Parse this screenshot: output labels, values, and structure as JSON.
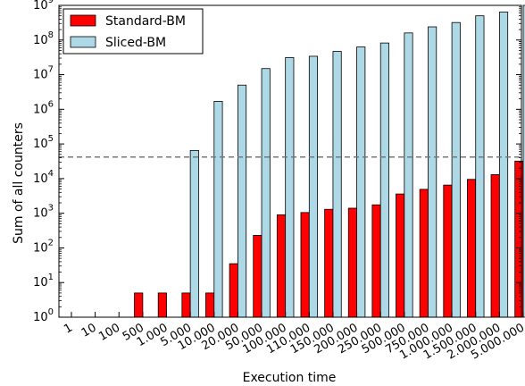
{
  "chart_data": {
    "type": "bar",
    "title": "",
    "xlabel": "Execution time",
    "ylabel": "Sum of all counters",
    "yscale": "log",
    "ylim": [
      1,
      1000000000
    ],
    "y_ticks": [
      {
        "value": 1,
        "base": "10",
        "exp": "0"
      },
      {
        "value": 10,
        "base": "10",
        "exp": "1"
      },
      {
        "value": 100,
        "base": "10",
        "exp": "2"
      },
      {
        "value": 1000,
        "base": "10",
        "exp": "3"
      },
      {
        "value": 10000,
        "base": "10",
        "exp": "4"
      },
      {
        "value": 100000,
        "base": "10",
        "exp": "5"
      },
      {
        "value": 1000000,
        "base": "10",
        "exp": "6"
      },
      {
        "value": 10000000,
        "base": "10",
        "exp": "7"
      },
      {
        "value": 100000000,
        "base": "10",
        "exp": "8"
      },
      {
        "value": 1000000000,
        "base": "10",
        "exp": "9"
      }
    ],
    "categories": [
      "1",
      "10",
      "100",
      "500",
      "1.000",
      "5.000",
      "10.000",
      "20.000",
      "50.000",
      "100.000",
      "110.000",
      "150.000",
      "200.000",
      "250.000",
      "500.000",
      "750.000",
      "1.000.000",
      "1.500.000",
      "2.000.000",
      "5.000.000"
    ],
    "series": [
      {
        "name": "Standard-BM",
        "color": "#ff0000",
        "values": [
          0,
          0,
          0,
          5,
          5,
          5,
          5,
          35,
          230,
          900,
          1050,
          1300,
          1400,
          1750,
          3600,
          4900,
          6500,
          9500,
          13000,
          32000
        ]
      },
      {
        "name": "Sliced-BM",
        "color": "#add8e6",
        "values": [
          0,
          0,
          0,
          0,
          0,
          65000,
          1700000,
          5000000,
          15000000,
          31000000,
          34000000,
          47000000,
          63000000,
          82000000,
          160000000,
          240000000,
          320000000,
          500000000,
          640000000,
          1600000000
        ]
      }
    ],
    "reference_line": {
      "value": 42000,
      "style": "dashed",
      "color": "#777777"
    },
    "legend": {
      "position": "top-left"
    },
    "grid": false
  }
}
